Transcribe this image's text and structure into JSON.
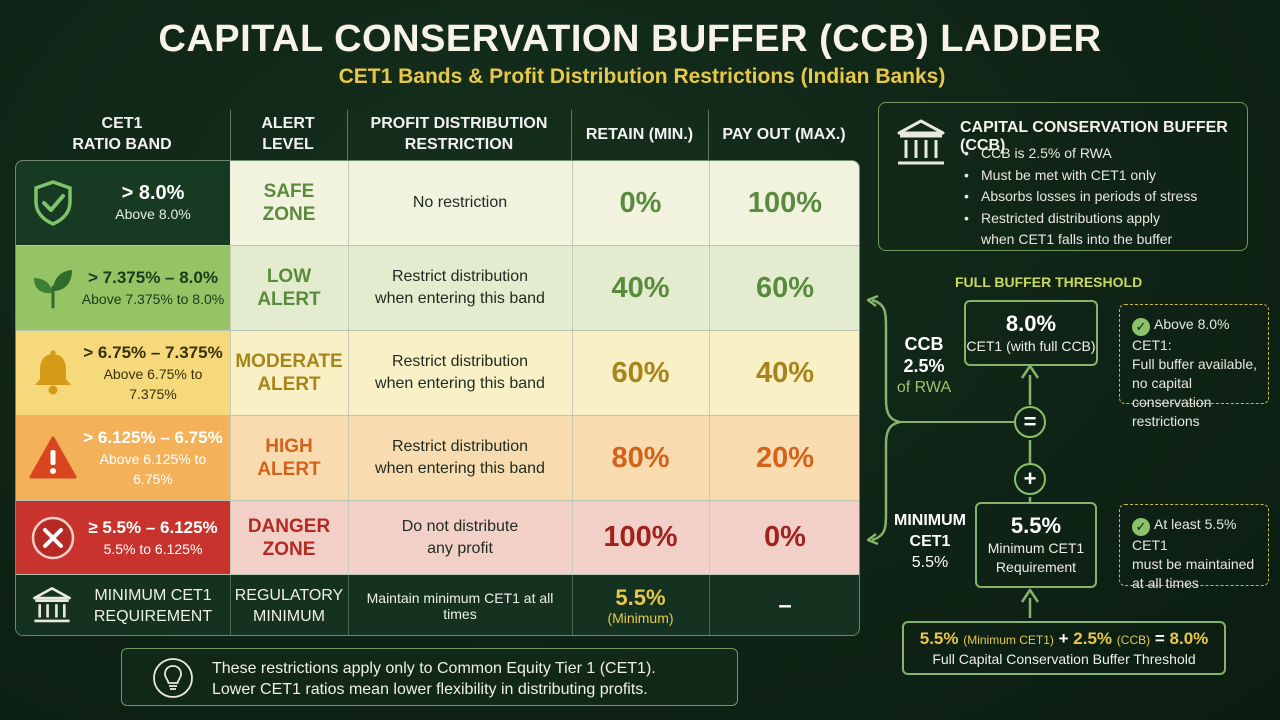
{
  "title": "CAPITAL CONSERVATION BUFFER (CCB) LADDER",
  "subtitle": "CET1 Bands & Profit Distribution Restrictions (Indian Banks)",
  "table": {
    "headers": [
      "CET1\nRATIO BAND",
      "ALERT\nLEVEL",
      "PROFIT DISTRIBUTION\nRESTRICTION",
      "RETAIN (MIN.)",
      "PAY OUT (MAX.)"
    ],
    "rows": [
      {
        "band": "> 8.0%",
        "band_sub": "Above 8.0%",
        "alert": "SAFE\nZONE",
        "restriction": "No restriction",
        "retain": "0%",
        "payout": "100%",
        "icon": "shield-check-icon"
      },
      {
        "band": "> 7.375% – 8.0%",
        "band_sub": "Above 7.375% to 8.0%",
        "alert": "LOW\nALERT",
        "restriction": "Restrict distribution\nwhen entering this band",
        "retain": "40%",
        "payout": "60%",
        "icon": "leaf-icon"
      },
      {
        "band": "> 6.75% – 7.375%",
        "band_sub": "Above 6.75% to 7.375%",
        "alert": "MODERATE\nALERT",
        "restriction": "Restrict distribution\nwhen entering this band",
        "retain": "60%",
        "payout": "40%",
        "icon": "bell-icon"
      },
      {
        "band": "> 6.125% – 6.75%",
        "band_sub": "Above 6.125% to 6.75%",
        "alert": "HIGH\nALERT",
        "restriction": "Restrict distribution\nwhen entering this band",
        "retain": "80%",
        "payout": "20%",
        "icon": "warning-icon"
      },
      {
        "band": "≥ 5.5% – 6.125%",
        "band_sub": "5.5% to 6.125%",
        "alert": "DANGER\nZONE",
        "restriction": "Do not distribute\nany profit",
        "retain": "100%",
        "payout": "0%",
        "icon": "x-circle-icon"
      }
    ],
    "min_row": {
      "band": "MINIMUM CET1\nREQUIREMENT",
      "alert": "REGULATORY\nMINIMUM",
      "restriction": "Maintain minimum CET1 at all times",
      "retain": "5.5%",
      "retain_sub": "(Minimum)",
      "payout": "–"
    }
  },
  "note": {
    "line1": "These restrictions apply only to Common Equity Tier 1 (CET1).",
    "line2": "Lower CET1 ratios mean lower flexibility in distributing profits."
  },
  "ccb_box": {
    "title": "CAPITAL CONSERVATION BUFFER (CCB)",
    "items": [
      "CCB is 2.5% of RWA",
      "Must be met with CET1 only",
      "Absorbs losses in periods of stress",
      "Restricted distributions apply\nwhen CET1 falls into the buffer"
    ]
  },
  "diagram": {
    "full_threshold_title": "FULL BUFFER THRESHOLD",
    "top_value": "8.0%",
    "top_label": "CET1 (with full CCB)",
    "equals": "=",
    "plus": "+",
    "bottom_value": "5.5%",
    "bottom_label": "Minimum CET1\nRequirement",
    "ccb_label": "CCB",
    "ccb_value": "2.5%",
    "ccb_unit": "of RWA",
    "min_label": "MINIMUM\nCET1",
    "min_value": "5.5%",
    "note_top": "Above 8.0% CET1:\nFull buffer available,\nno capital conservation\nrestrictions",
    "note_bottom": "At least 5.5% CET1\nmust be maintained\nat all times",
    "sum_a": "5.5%",
    "sum_a_label": "(Minimum CET1)",
    "sum_plus": "+",
    "sum_b": "2.5%",
    "sum_b_label": "(CCB)",
    "sum_eq": "=",
    "sum_total": "8.0%",
    "sum_caption": "Full Capital Conservation Buffer Threshold"
  },
  "colors": {
    "safe_band": "#163a22",
    "safe_row": "#f1f3df",
    "low_band": "#94c463",
    "low_row": "#e3eccf",
    "moderate_band": "#f5d97a",
    "moderate_row": "#faf0c6",
    "high_band": "#f3b25a",
    "high_row": "#f8dcb0",
    "danger_band": "#c8342d",
    "danger_row": "#f2d0c8",
    "min_row": "#153220",
    "accent_green": "#86b36a",
    "accent_yellow": "#e7c84a"
  }
}
